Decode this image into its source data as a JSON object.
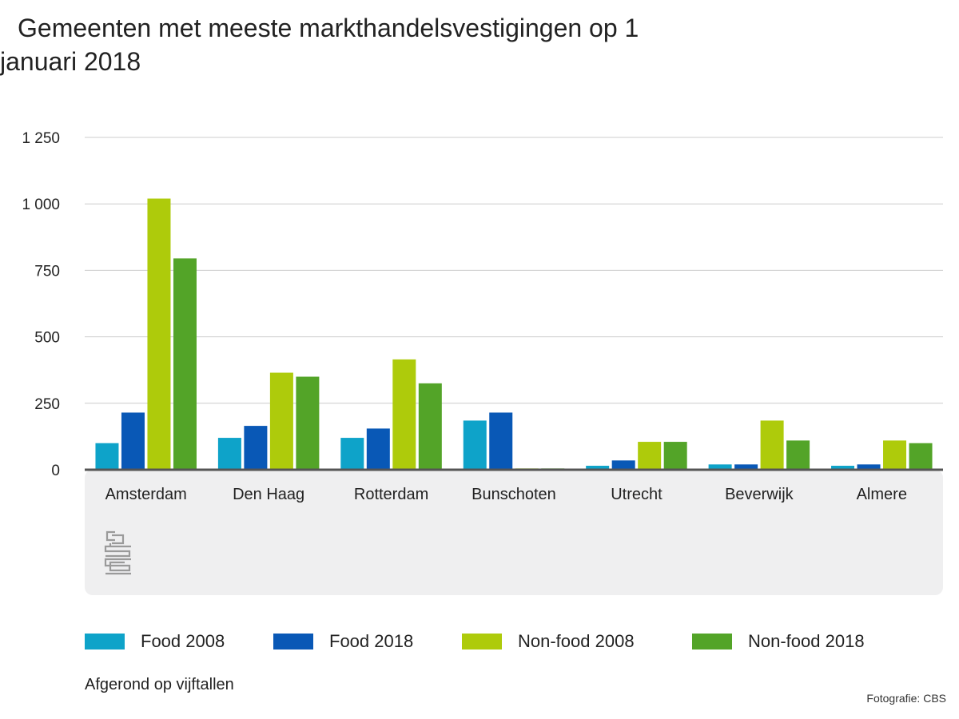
{
  "colors": {
    "food_2008": "#0ea3c9",
    "food_2018": "#0958b6",
    "nonfood_2008": "#aecb0b",
    "nonfood_2018": "#53a428",
    "panel_bg": "#efeff0",
    "grid": "#cccccc",
    "baseline": "#555555",
    "logo": "#9a9a9a"
  },
  "logo": {
    "icon": "cbs-logo-icon"
  },
  "legend": [
    {
      "label": "Food 2008",
      "color": "#0ea3c9"
    },
    {
      "label": "Food 2018",
      "color": "#0958b6"
    },
    {
      "label": "Non-food 2008",
      "color": "#aecb0b"
    },
    {
      "label": "Non-food 2018",
      "color": "#53a428"
    }
  ],
  "note": "Afgerond op vijftallen",
  "credit": "Fotografie: CBS",
  "chart_data": {
    "type": "bar",
    "title": "Gemeenten met meeste markthandelsvestigingen op 1 januari 2018",
    "xlabel": "",
    "ylabel": "",
    "ylim": [
      0,
      1250
    ],
    "yticks": [
      0,
      250,
      500,
      750,
      1000,
      1250
    ],
    "ytick_labels": [
      "0",
      "250",
      "500",
      "750",
      "1 000",
      "1 250"
    ],
    "grid": true,
    "legend_position": "bottom",
    "categories": [
      "Amsterdam",
      "Den Haag",
      "Rotterdam",
      "Bunschoten",
      "Utrecht",
      "Beverwijk",
      "Almere"
    ],
    "series": [
      {
        "name": "Food 2008",
        "values": [
          100,
          120,
          120,
          185,
          15,
          20,
          15
        ]
      },
      {
        "name": "Food 2018",
        "values": [
          215,
          165,
          155,
          215,
          35,
          20,
          20
        ]
      },
      {
        "name": "Non-food 2008",
        "values": [
          1020,
          365,
          415,
          5,
          105,
          185,
          110
        ]
      },
      {
        "name": "Non-food 2018",
        "values": [
          795,
          350,
          325,
          5,
          105,
          110,
          100
        ]
      }
    ]
  }
}
